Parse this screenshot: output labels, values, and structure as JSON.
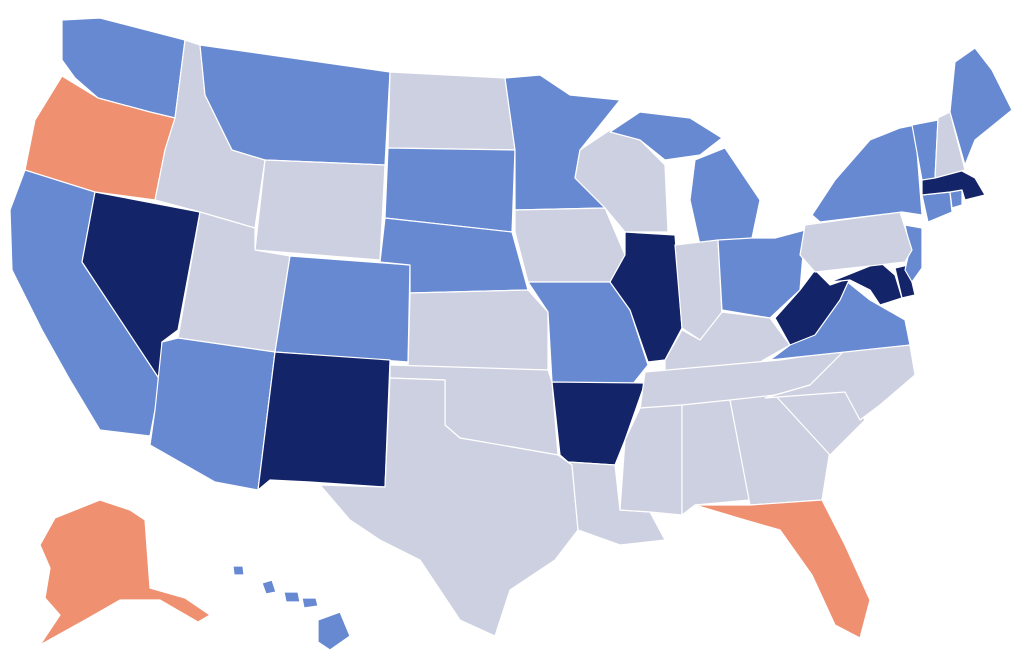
{
  "legend": {
    "colors": {
      "dark_blue": "#142468",
      "medium_blue": "#6689d1",
      "gray": "#cdd0e0",
      "orange": "#ef9070"
    }
  },
  "states": {
    "WA": "medium_blue",
    "OR": "orange",
    "CA": "medium_blue",
    "NV": "dark_blue",
    "ID": "gray",
    "MT": "medium_blue",
    "WY": "gray",
    "UT": "gray",
    "AZ": "medium_blue",
    "CO": "medium_blue",
    "NM": "dark_blue",
    "ND": "gray",
    "SD": "medium_blue",
    "NE": "medium_blue",
    "KS": "gray",
    "OK": "gray",
    "TX": "gray",
    "MN": "medium_blue",
    "IA": "gray",
    "MO": "medium_blue",
    "AR": "dark_blue",
    "LA": "gray",
    "WI": "gray",
    "IL": "dark_blue",
    "MI": "medium_blue",
    "IN": "gray",
    "OH": "medium_blue",
    "KY": "gray",
    "TN": "gray",
    "MS": "gray",
    "AL": "gray",
    "GA": "gray",
    "FL": "orange",
    "SC": "gray",
    "NC": "gray",
    "VA": "medium_blue",
    "WV": "dark_blue",
    "MD": "dark_blue",
    "DE": "dark_blue",
    "NJ": "medium_blue",
    "PA": "gray",
    "NY": "medium_blue",
    "CT": "medium_blue",
    "RI": "medium_blue",
    "MA": "dark_blue",
    "VT": "medium_blue",
    "NH": "gray",
    "ME": "medium_blue",
    "AK": "orange",
    "HI": "medium_blue"
  }
}
